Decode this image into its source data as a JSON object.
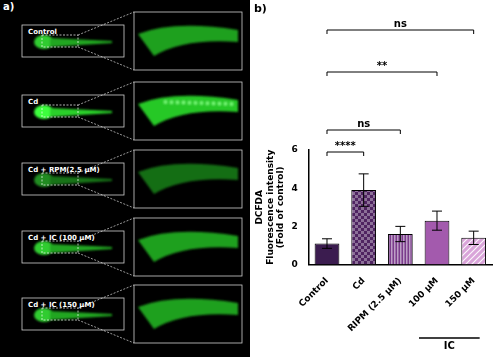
{
  "panels": {
    "a": {
      "label": "a)",
      "images": [
        "Control",
        "Cd",
        "Cd + RPM(2.5 μM)",
        "Cd + IC (100 μM)",
        "Cd + IC (150 μM)"
      ]
    },
    "b": {
      "label": "b)"
    }
  },
  "chart_data": {
    "type": "bar",
    "y_label": [
      "DCFDA",
      "Fluorescence intensity",
      "(Fold of control)"
    ],
    "categories": [
      "Control",
      "Cd",
      "RIPM (2.5 μM)",
      "100 μM",
      "150 μM"
    ],
    "values": [
      1.1,
      3.9,
      1.6,
      2.3,
      1.4
    ],
    "errors": [
      0.25,
      0.85,
      0.4,
      0.5,
      0.35
    ],
    "colors": [
      "#3b1c4f",
      "#4f2461",
      "#7b3c8c",
      "#a35aad",
      "#d9a4d9"
    ],
    "ylim": [
      0,
      6
    ],
    "yticks": [
      0,
      2,
      4,
      6
    ],
    "grid": false,
    "groups": [
      {
        "label": "IC",
        "categories": [
          "100 μM",
          "150 μM"
        ]
      }
    ],
    "annotations": [
      {
        "from": "Control",
        "to": "Cd",
        "text": "****"
      },
      {
        "from": "Control",
        "to": "RIPM (2.5 μM)",
        "text": "ns"
      },
      {
        "from": "Control",
        "to": "100 μM",
        "text": "**"
      },
      {
        "from": "Control",
        "to": "150 μM",
        "text": "ns"
      }
    ]
  }
}
